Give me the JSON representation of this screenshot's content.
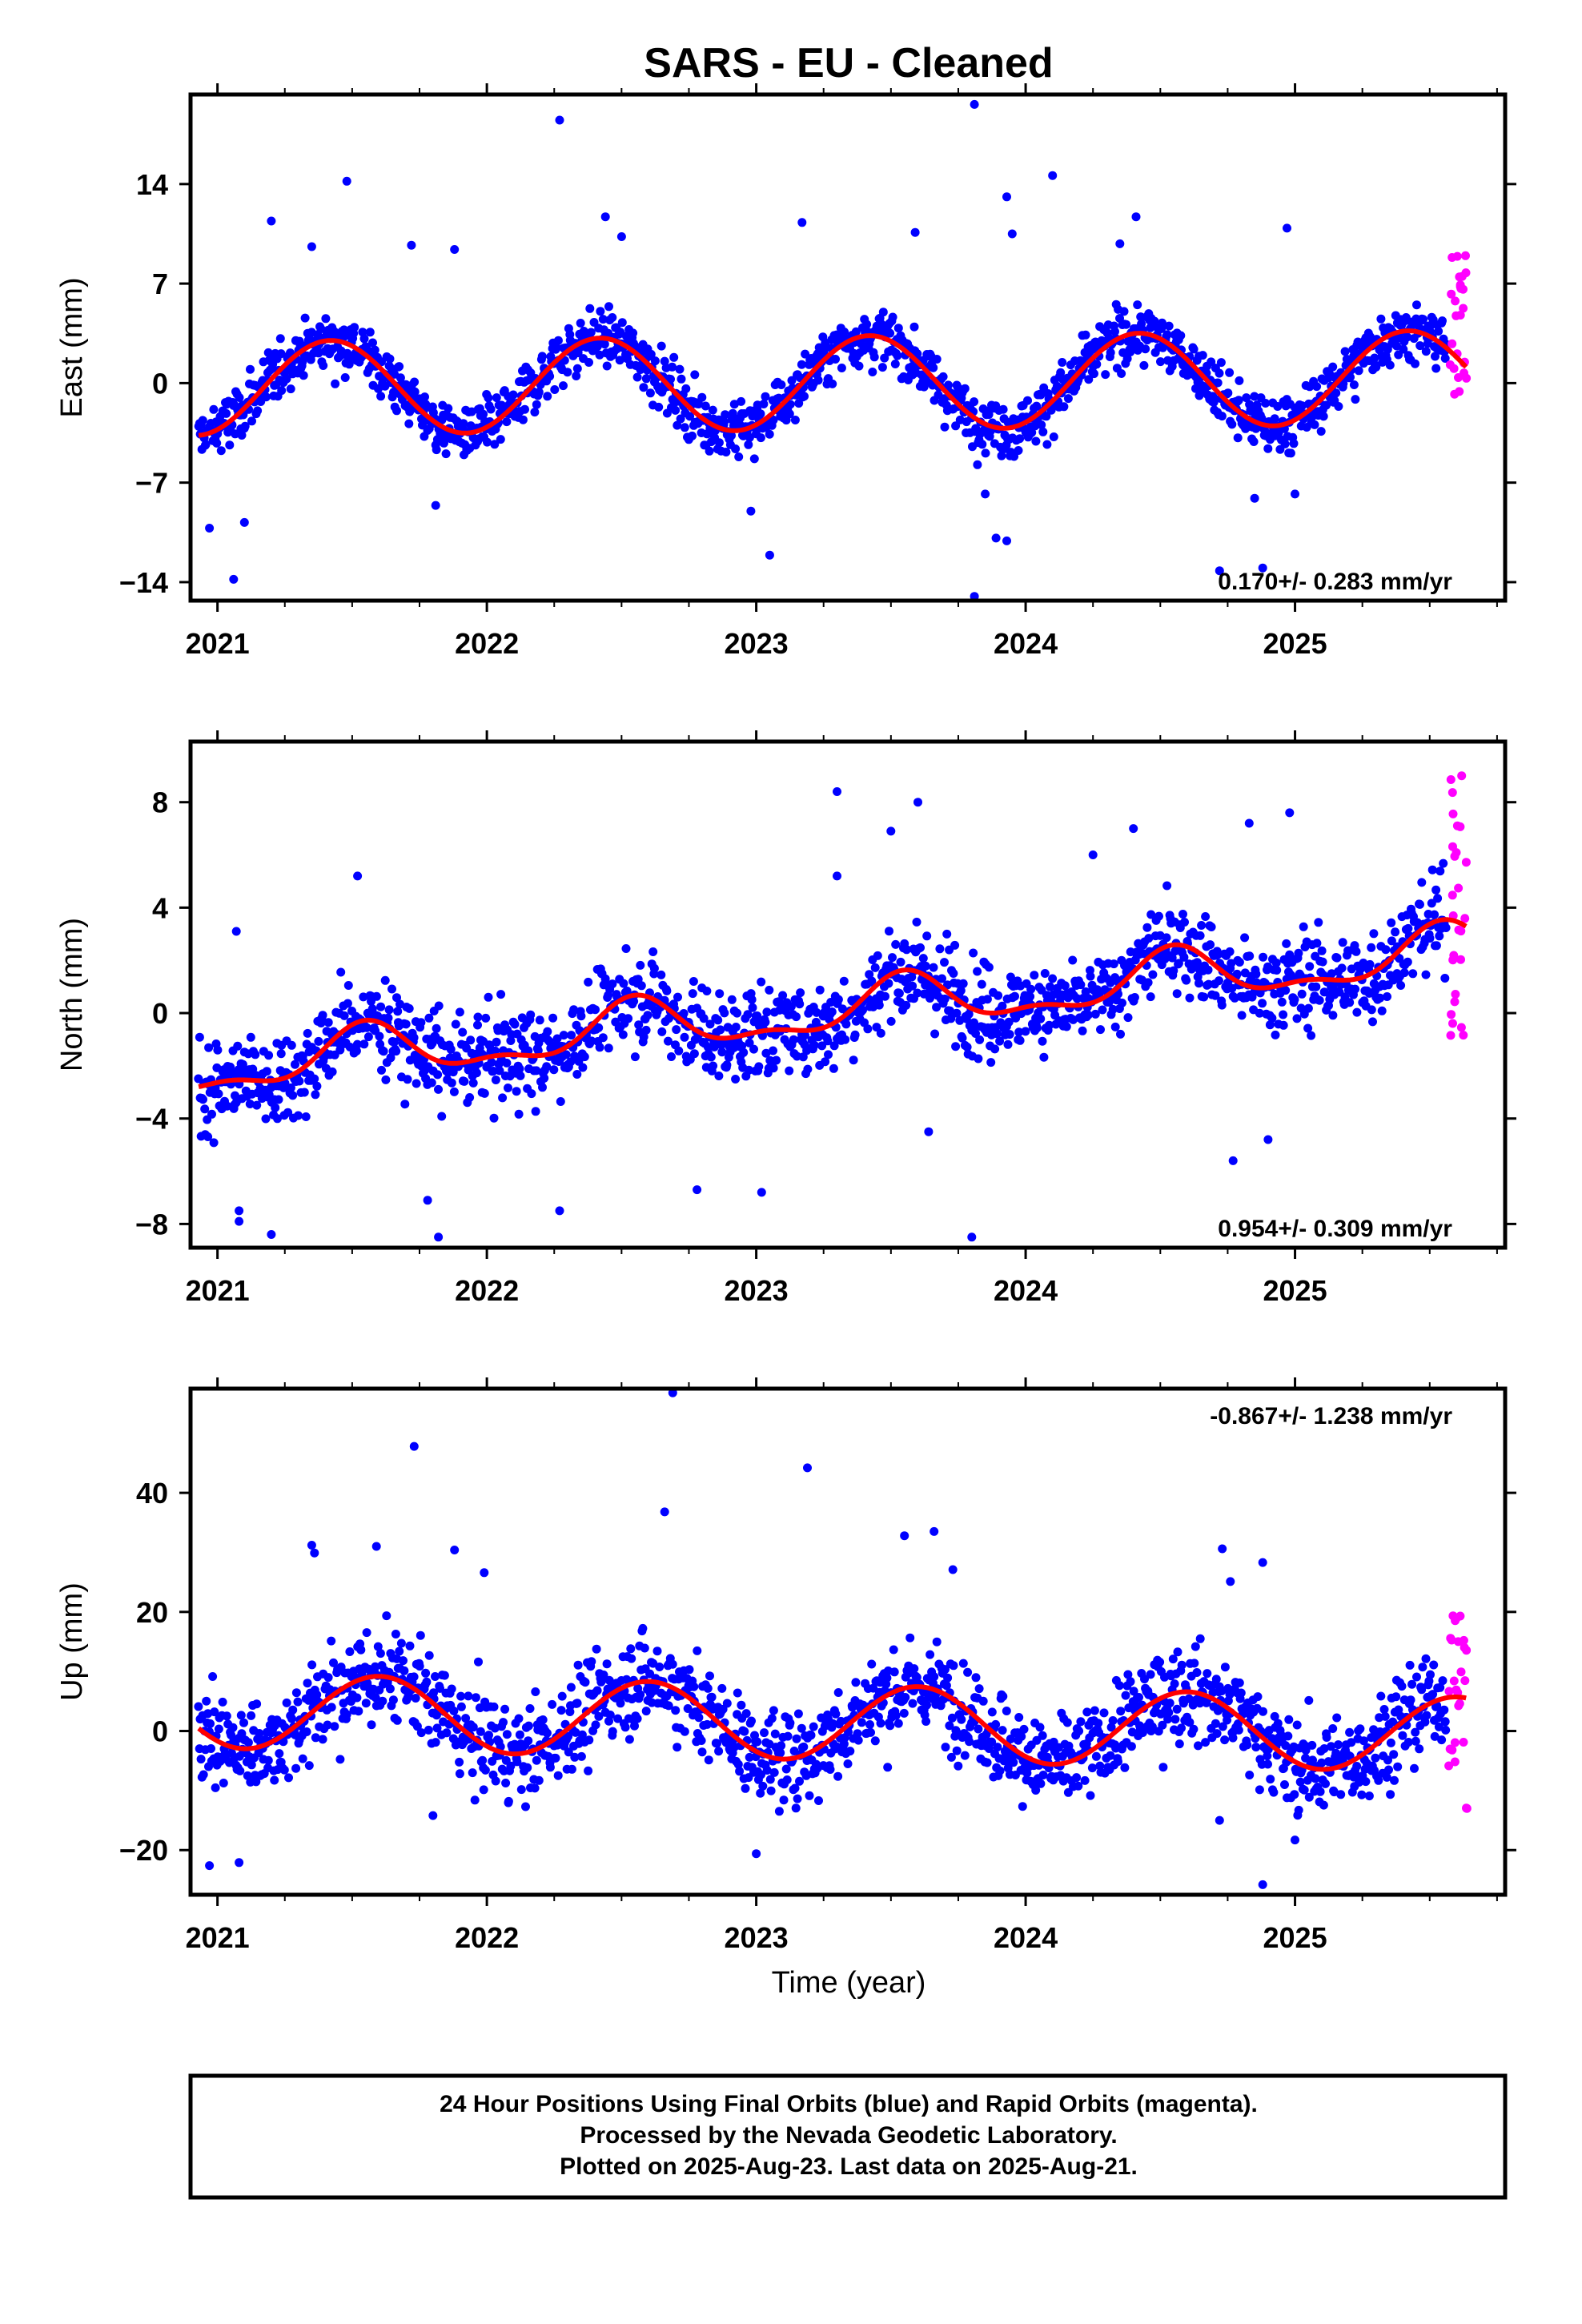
{
  "chart_data": {
    "title": "SARS  - EU - Cleaned",
    "type": "scatter",
    "xlabel": "Time (year)",
    "xlim": [
      2020.9,
      2025.78
    ],
    "xticks": [
      "2021",
      "2022",
      "2023",
      "2024",
      "2025"
    ],
    "grid": false,
    "colors": {
      "final": "#0000ff",
      "rapid": "#ff00ff",
      "model": "#ff0000",
      "frame": "#000000"
    },
    "panels": [
      {
        "name": "East",
        "ylabel": "East (mm)",
        "ylim": [
          -15.3,
          20.3
        ],
        "yticks": [
          "14",
          "7",
          "0",
          "-7",
          "-14"
        ],
        "rate": "0.170+/- 0.283 mm/yr",
        "rate_position": "bottom-right",
        "model": {
          "offset": 0.0,
          "trend": 0.17,
          "amplitude": 3.3,
          "peak_phase": 0.42,
          "amplitude2": 0.0,
          "peak_phase2": 0.0
        },
        "final_points": {
          "x_start": 2020.93,
          "x_end": 2025.56,
          "count": 1500,
          "noise": 1.4
        },
        "rapid_points": {
          "x_start": 2025.57,
          "x_end": 2025.64,
          "count": 26,
          "range": [
            -1.2,
            9.3
          ]
        },
        "outliers": [
          [
            2022.27,
            18.5
          ],
          [
            2023.81,
            19.6
          ],
          [
            2024.1,
            14.6
          ],
          [
            2021.48,
            14.2
          ],
          [
            2023.93,
            13.1
          ],
          [
            2023.17,
            11.3
          ],
          [
            2024.41,
            11.7
          ],
          [
            2021.2,
            11.4
          ],
          [
            2022.44,
            11.7
          ],
          [
            2023.59,
            10.6
          ],
          [
            2024.97,
            10.9
          ],
          [
            2021.72,
            9.7
          ],
          [
            2021.88,
            9.4
          ],
          [
            2022.5,
            10.3
          ],
          [
            2023.95,
            10.5
          ],
          [
            2021.35,
            9.6
          ],
          [
            2024.35,
            9.8
          ],
          [
            2020.97,
            -10.2
          ],
          [
            2021.1,
            -9.8
          ],
          [
            2021.06,
            -13.8
          ],
          [
            2023.81,
            -15.0
          ],
          [
            2023.05,
            -12.1
          ],
          [
            2023.93,
            -11.1
          ],
          [
            2023.89,
            -10.9
          ],
          [
            2022.98,
            -9.0
          ],
          [
            2024.72,
            -13.2
          ],
          [
            2024.88,
            -13.0
          ],
          [
            2021.81,
            -8.6
          ],
          [
            2023.85,
            -7.8
          ],
          [
            2024.85,
            -8.1
          ],
          [
            2025.0,
            -7.8
          ]
        ]
      },
      {
        "name": "North",
        "ylabel": "North (mm)",
        "ylim": [
          -8.9,
          10.3
        ],
        "yticks": [
          "8",
          "4",
          "0",
          "-4",
          "-8"
        ],
        "rate": "0.954+/- 0.309 mm/yr",
        "rate_position": "bottom-right",
        "model": {
          "offset": 0.0,
          "trend": 0.954,
          "amplitude": 0.9,
          "peak_phase": 0.55,
          "amplitude2": 0.4,
          "peak_phase2": 0.05
        },
        "final_points": {
          "x_start": 2020.93,
          "x_end": 2025.56,
          "count": 1500,
          "noise": 1.2
        },
        "rapid_points": {
          "x_start": 2025.57,
          "x_end": 2025.64,
          "count": 26,
          "range": [
            -1.1,
            9.8
          ]
        },
        "outliers": [
          [
            2023.3,
            8.4
          ],
          [
            2023.6,
            8.0
          ],
          [
            2024.83,
            7.2
          ],
          [
            2024.98,
            7.6
          ],
          [
            2024.4,
            7.0
          ],
          [
            2023.5,
            6.9
          ],
          [
            2024.25,
            6.0
          ],
          [
            2021.52,
            5.2
          ],
          [
            2023.3,
            5.2
          ],
          [
            2021.07,
            3.1
          ],
          [
            2021.2,
            -8.4
          ],
          [
            2022.27,
            -7.5
          ],
          [
            2021.08,
            -7.9
          ],
          [
            2021.78,
            -7.1
          ],
          [
            2021.08,
            -7.5
          ],
          [
            2023.8,
            -8.5
          ],
          [
            2021.82,
            -8.5
          ],
          [
            2023.02,
            -6.8
          ],
          [
            2022.78,
            -6.7
          ],
          [
            2024.77,
            -5.6
          ],
          [
            2024.9,
            -4.8
          ],
          [
            2023.64,
            -4.5
          ]
        ]
      },
      {
        "name": "Up",
        "ylabel": "Up (mm)",
        "ylim": [
          -27.5,
          57.5
        ],
        "yticks": [
          "40",
          "20",
          "0",
          "-20"
        ],
        "rate": "-0.867+/- 1.238 mm/yr",
        "rate_position": "top-right",
        "model": {
          "offset": 1.5,
          "trend": -0.867,
          "amplitude": 6.3,
          "peak_phase": 0.6,
          "amplitude2": 0.0,
          "peak_phase2": 0.0
        },
        "final_points": {
          "x_start": 2020.93,
          "x_end": 2025.56,
          "count": 1500,
          "noise": 5.5
        },
        "rapid_points": {
          "x_start": 2025.57,
          "x_end": 2025.64,
          "count": 26,
          "range": [
            -13.2,
            21.3
          ]
        },
        "outliers": [
          [
            2022.69,
            56.8
          ],
          [
            2021.73,
            47.8
          ],
          [
            2023.19,
            44.2
          ],
          [
            2022.66,
            36.8
          ],
          [
            2023.66,
            33.5
          ],
          [
            2023.55,
            32.8
          ],
          [
            2021.35,
            31.2
          ],
          [
            2021.59,
            31.0
          ],
          [
            2021.88,
            30.4
          ],
          [
            2024.73,
            30.6
          ],
          [
            2021.36,
            29.9
          ],
          [
            2023.73,
            27.1
          ],
          [
            2021.99,
            26.6
          ],
          [
            2024.88,
            28.3
          ],
          [
            2024.76,
            25.1
          ],
          [
            2020.97,
            -22.6
          ],
          [
            2021.08,
            -22.1
          ],
          [
            2023.0,
            -20.6
          ],
          [
            2024.88,
            -25.8
          ],
          [
            2025.0,
            -18.3
          ],
          [
            2024.72,
            -15.0
          ],
          [
            2021.8,
            -14.2
          ]
        ]
      }
    ]
  },
  "caption": {
    "line1": "24 Hour Positions Using Final Orbits (blue) and Rapid Orbits (magenta).",
    "line2": "Processed by the Nevada Geodetic Laboratory.",
    "line3": "Plotted on 2025-Aug-23. Last data on 2025-Aug-21."
  }
}
